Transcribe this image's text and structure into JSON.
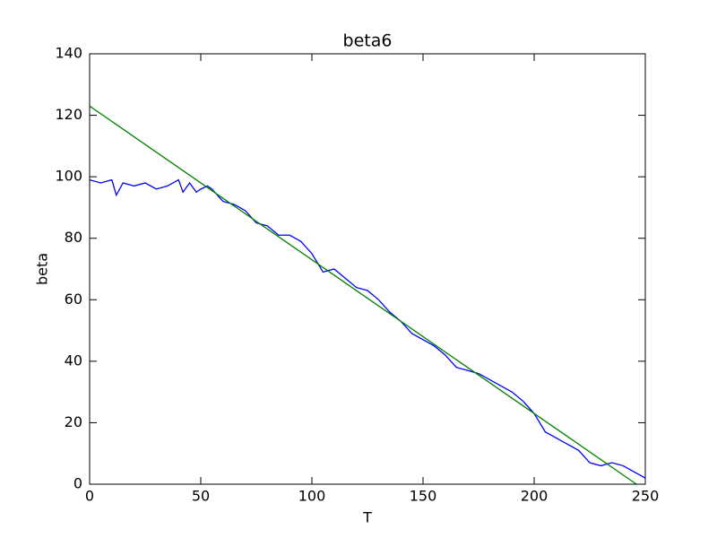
{
  "chart_data": {
    "type": "line",
    "title": "beta6",
    "x_label": "T",
    "y_label": "beta",
    "xlim": [
      0,
      250
    ],
    "ylim": [
      0,
      140
    ],
    "xticks": [
      0,
      50,
      100,
      150,
      200,
      250
    ],
    "yticks": [
      0,
      20,
      40,
      60,
      80,
      100,
      120,
      140
    ],
    "grid": false,
    "series": [
      {
        "color": "#0000ff",
        "x": [
          0,
          5,
          10,
          12,
          15,
          20,
          25,
          30,
          35,
          40,
          42,
          45,
          48,
          50,
          53,
          55,
          60,
          65,
          70,
          75,
          80,
          85,
          90,
          95,
          100,
          105,
          110,
          115,
          120,
          125,
          130,
          135,
          140,
          145,
          150,
          155,
          160,
          165,
          170,
          175,
          180,
          185,
          190,
          195,
          200,
          205,
          210,
          215,
          220,
          225,
          230,
          235,
          240,
          245,
          250
        ],
        "values": [
          99,
          98,
          99,
          94,
          98,
          97,
          98,
          96,
          97,
          99,
          95,
          98,
          95,
          96,
          97,
          96,
          92,
          91,
          89,
          85,
          84,
          81,
          81,
          79,
          75,
          69,
          70,
          67,
          64,
          63,
          60,
          56,
          53,
          49,
          47,
          45,
          42,
          38,
          37,
          36,
          34,
          32,
          30,
          27,
          23,
          17,
          15,
          13,
          11,
          7,
          6,
          7,
          6,
          4,
          2
        ]
      },
      {
        "color": "#008000",
        "x": [
          0,
          246
        ],
        "values": [
          123,
          0
        ]
      }
    ]
  }
}
